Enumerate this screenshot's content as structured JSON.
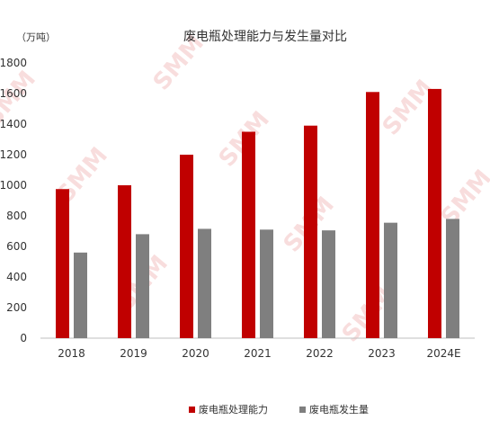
{
  "chart_data": {
    "type": "bar",
    "title": "废电瓶处理能力与发生量对比",
    "unit_label": "（万吨）",
    "categories": [
      "2018",
      "2019",
      "2020",
      "2021",
      "2022",
      "2023",
      "2024E"
    ],
    "series": [
      {
        "name": "废电瓶处理能力",
        "values": [
          975,
          1000,
          1200,
          1350,
          1390,
          1610,
          1630
        ]
      },
      {
        "name": "废电瓶发生量",
        "values": [
          560,
          680,
          715,
          710,
          705,
          755,
          780
        ]
      }
    ],
    "ylim": [
      0,
      1800
    ],
    "yticks": [
      0,
      200,
      400,
      600,
      800,
      1000,
      1200,
      1400,
      1600,
      1800
    ],
    "grid": false,
    "legend_position": "bottom"
  },
  "colors": {
    "capacity": "#c00000",
    "generation": "#7f7f7f",
    "axis": "#bfbfbf"
  },
  "watermark": "SMM"
}
